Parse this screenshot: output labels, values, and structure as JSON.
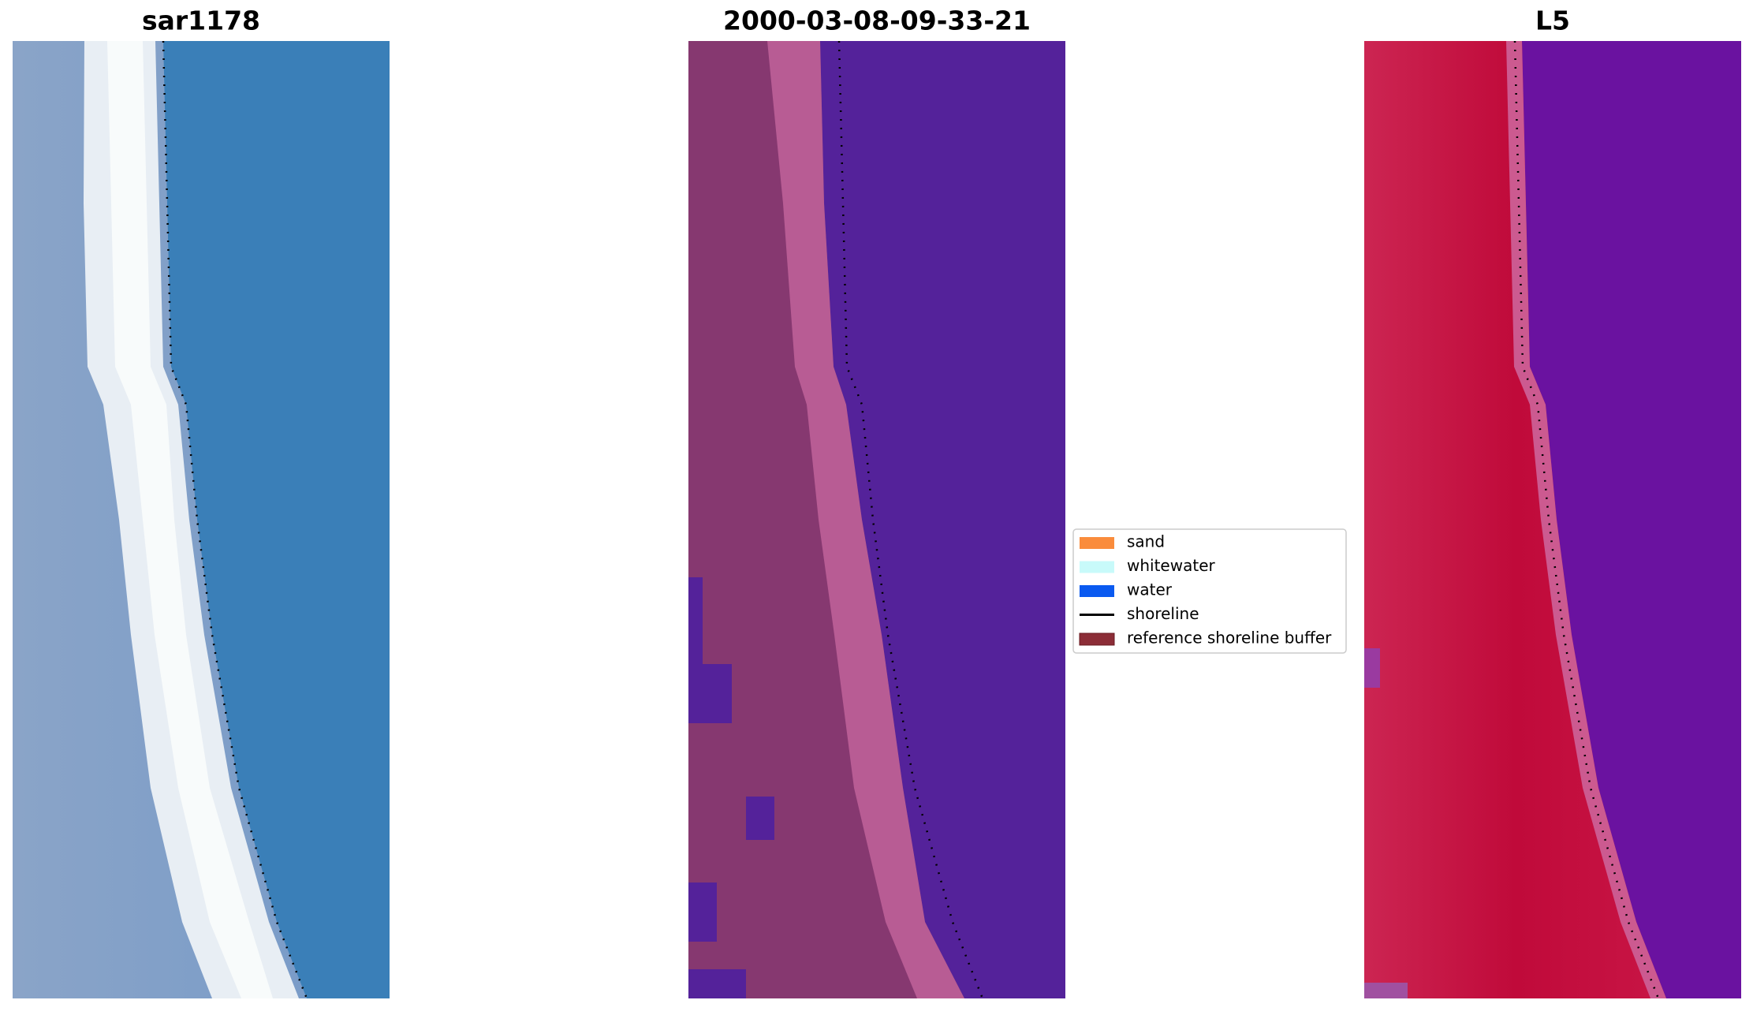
{
  "panels": [
    {
      "title": "sar1178"
    },
    {
      "title": "2000-03-08-09-33-21"
    },
    {
      "title": "L5"
    }
  ],
  "legend": {
    "items": [
      {
        "label": "sand",
        "color": "#fa8c3c"
      },
      {
        "label": "whitewater",
        "color": "#c8fafa"
      },
      {
        "label": "water",
        "color": "#0a5af0"
      },
      {
        "label": "shoreline",
        "color": "#000000"
      },
      {
        "label": "reference shoreline buffer",
        "color": "#8c2d37"
      }
    ]
  }
}
